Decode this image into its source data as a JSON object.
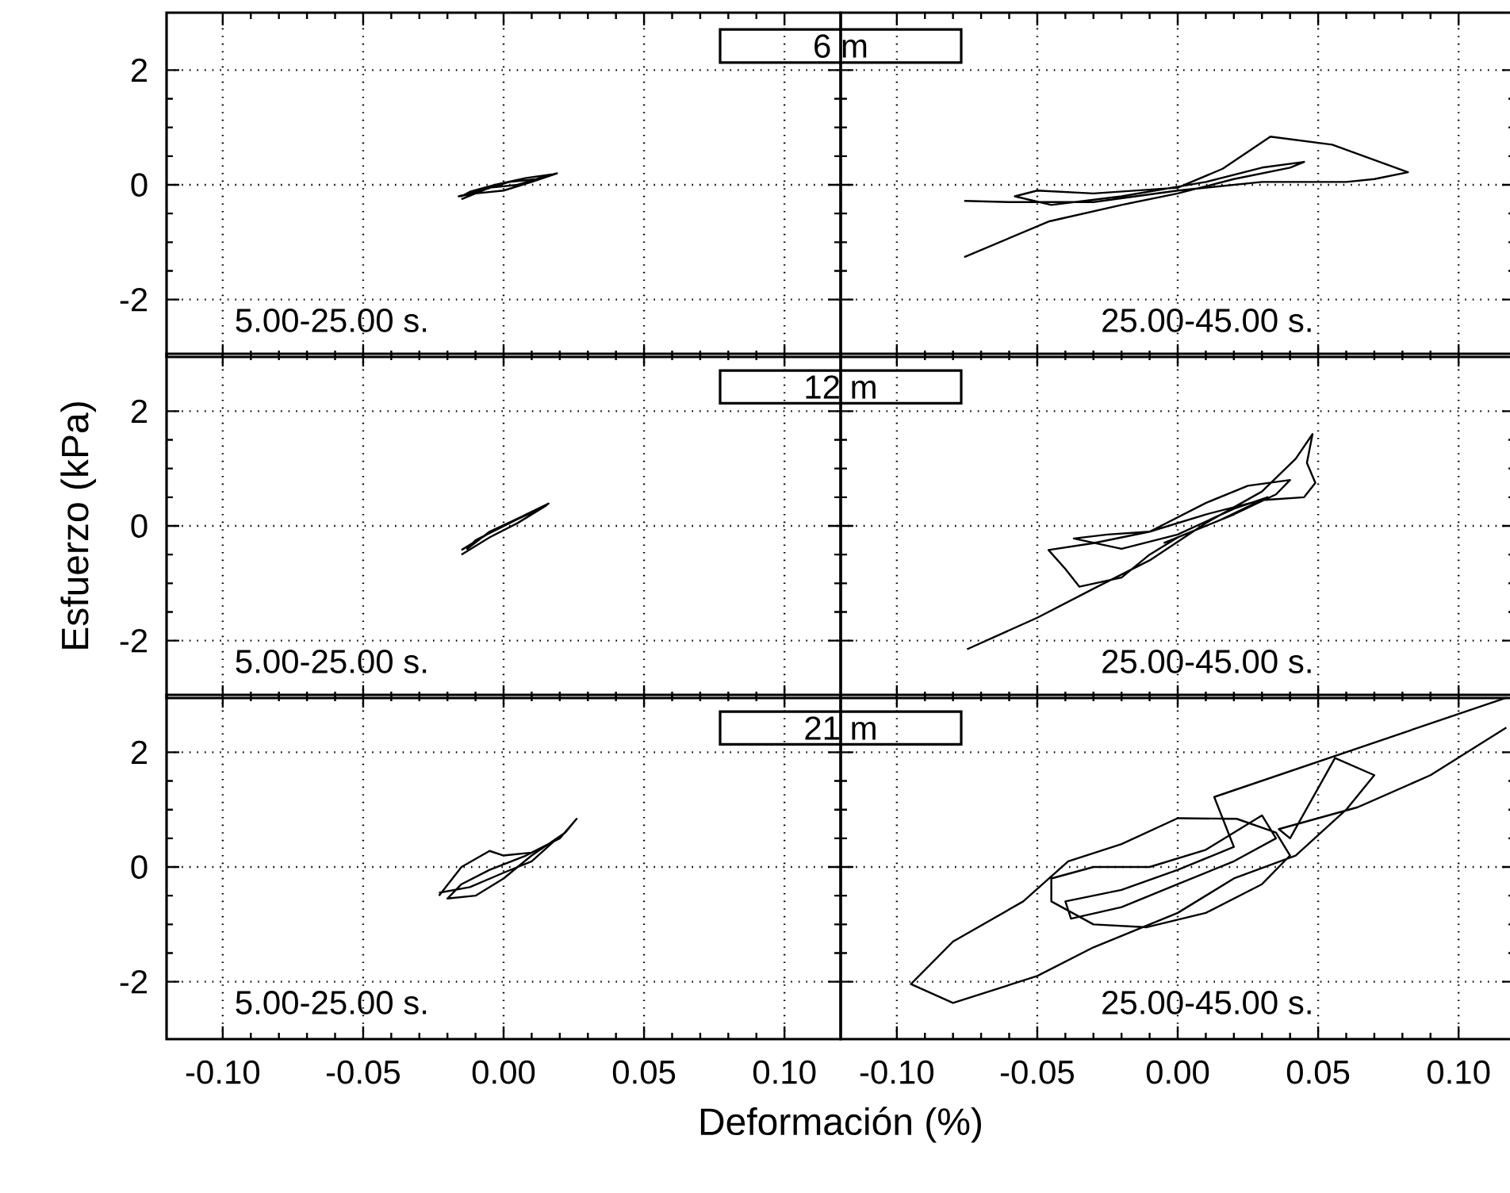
{
  "chart_data": [
    {
      "type": "line",
      "title": "6 m",
      "annotations": [
        "5.00-25.00 s."
      ],
      "xlim": [
        -0.12,
        0.12
      ],
      "ylim": [
        -3,
        3
      ],
      "xticks": [
        {
          "value": -0.1,
          "label": null
        },
        {
          "value": -0.05,
          "label": null
        },
        {
          "value": 0,
          "label": null
        },
        {
          "value": 0.05,
          "label": null
        },
        {
          "value": 0.1,
          "label": null
        }
      ],
      "yticks": [
        -2,
        0,
        2
      ],
      "grid": true,
      "tick_labels": "y",
      "series": [
        {
          "color": "#000000",
          "x": [
            -0.015,
            -0.005,
            0.005,
            0.015,
            0.019,
            0.01,
            0.0,
            -0.01,
            -0.016,
            -0.008,
            0.002,
            0.012,
            0.017,
            0.008,
            -0.003,
            -0.012,
            -0.015
          ],
          "values": [
            -0.25,
            -0.05,
            0.0,
            0.15,
            0.2,
            0.05,
            -0.1,
            -0.15,
            -0.2,
            -0.1,
            0.05,
            0.1,
            0.18,
            0.12,
            0.0,
            -0.12,
            -0.2
          ]
        }
      ]
    },
    {
      "type": "line",
      "annotations": [
        "25.00-45.00 s."
      ],
      "xlim": [
        -0.12,
        0.12
      ],
      "ylim": [
        -3,
        3
      ],
      "xticks": [
        {
          "value": -0.1,
          "label": null
        },
        {
          "value": -0.05,
          "label": null
        },
        {
          "value": 0,
          "label": null
        },
        {
          "value": 0.05,
          "label": null
        },
        {
          "value": 0.1,
          "label": null
        }
      ],
      "yticks": [
        {
          "value": -2,
          "label": null
        },
        {
          "value": 0,
          "label": null
        },
        {
          "value": 2,
          "label": null
        }
      ],
      "grid": true,
      "tick_labels": false,
      "series": [
        {
          "color": "#000000",
          "x": [
            -0.076,
            -0.046,
            -0.02,
            0.0,
            0.02,
            0.04,
            0.045,
            0.03,
            0.01,
            -0.02,
            -0.045,
            -0.058,
            -0.05,
            -0.03,
            0.0,
            0.016,
            0.033,
            0.055,
            0.082,
            0.07,
            0.06,
            0.03,
            0.0,
            -0.03,
            -0.06,
            -0.076
          ],
          "values": [
            -1.26,
            -0.64,
            -0.35,
            -0.15,
            0.1,
            0.3,
            0.4,
            0.3,
            0.05,
            -0.2,
            -0.35,
            -0.2,
            -0.1,
            -0.15,
            -0.05,
            0.28,
            0.84,
            0.7,
            0.22,
            0.1,
            0.05,
            0.05,
            -0.1,
            -0.3,
            -0.3,
            -0.28
          ]
        }
      ]
    },
    {
      "type": "line",
      "title": "12 m",
      "ylabel": "Esfuerzo (kPa)",
      "annotations": [
        "5.00-25.00 s."
      ],
      "xlim": [
        -0.12,
        0.12
      ],
      "ylim": [
        -3,
        3
      ],
      "xticks": [
        {
          "value": -0.1,
          "label": null
        },
        {
          "value": -0.05,
          "label": null
        },
        {
          "value": 0,
          "label": null
        },
        {
          "value": 0.05,
          "label": null
        },
        {
          "value": 0.1,
          "label": null
        }
      ],
      "yticks": [
        -2,
        0,
        2
      ],
      "grid": true,
      "tick_labels": "y",
      "series": [
        {
          "color": "#000000",
          "x": [
            -0.015,
            -0.005,
            0.005,
            0.015,
            0.016,
            0.008,
            0.0,
            -0.01,
            -0.013,
            -0.005,
            0.006,
            0.013,
            0.005,
            -0.006,
            -0.015
          ],
          "values": [
            -0.5,
            -0.2,
            0.05,
            0.35,
            0.39,
            0.2,
            0.0,
            -0.25,
            -0.4,
            -0.1,
            0.15,
            0.3,
            0.12,
            -0.15,
            -0.42
          ]
        }
      ]
    },
    {
      "type": "line",
      "annotations": [
        "25.00-45.00 s."
      ],
      "xlim": [
        -0.12,
        0.12
      ],
      "ylim": [
        -3,
        3
      ],
      "xticks": [
        {
          "value": -0.1,
          "label": null
        },
        {
          "value": -0.05,
          "label": null
        },
        {
          "value": 0,
          "label": null
        },
        {
          "value": 0.05,
          "label": null
        },
        {
          "value": 0.1,
          "label": null
        }
      ],
      "yticks": [
        {
          "value": -2,
          "label": null
        },
        {
          "value": 0,
          "label": null
        },
        {
          "value": 2,
          "label": null
        }
      ],
      "grid": true,
      "tick_labels": false,
      "series": [
        {
          "color": "#000000",
          "x": [
            -0.075,
            -0.05,
            -0.029,
            -0.01,
            0.01,
            0.03,
            0.042,
            0.048,
            0.046,
            0.049,
            0.045,
            0.03,
            0.01,
            -0.01,
            -0.03,
            -0.046,
            -0.04,
            -0.035,
            -0.02,
            -0.01,
            0.0,
            0.02,
            0.035,
            0.04,
            0.025,
            0.01,
            -0.01,
            -0.025,
            -0.037,
            -0.02,
            0.0,
            0.02,
            0.032,
            0.015,
            -0.005
          ],
          "values": [
            -2.15,
            -1.6,
            -1.07,
            -0.6,
            0.05,
            0.6,
            1.17,
            1.6,
            1.1,
            0.75,
            0.5,
            0.45,
            0.2,
            -0.1,
            -0.3,
            -0.42,
            -0.75,
            -1.06,
            -0.9,
            -0.5,
            -0.2,
            0.2,
            0.55,
            0.8,
            0.7,
            0.4,
            -0.1,
            -0.15,
            -0.22,
            -0.4,
            -0.15,
            0.3,
            0.5,
            0.1,
            -0.3
          ]
        }
      ]
    },
    {
      "type": "line",
      "title": "21 m",
      "xlabel": "Deformación (%)",
      "annotations": [
        "5.00-25.00 s."
      ],
      "xlim": [
        -0.12,
        0.12
      ],
      "ylim": [
        -3,
        3
      ],
      "xticks": [
        {
          "value": -0.1,
          "label": "-0.10"
        },
        {
          "value": -0.05,
          "label": "-0.05"
        },
        {
          "value": 0,
          "label": "0.00"
        },
        {
          "value": 0.05,
          "label": "0.05"
        },
        {
          "value": 0.1,
          "label": "0.10"
        }
      ],
      "yticks": [
        -2,
        0,
        2
      ],
      "grid": true,
      "series": [
        {
          "color": "#000000",
          "x": [
            -0.023,
            -0.015,
            -0.005,
            0.0,
            0.01,
            0.02,
            0.026,
            0.022,
            0.01,
            0.0,
            -0.01,
            -0.02,
            -0.015,
            -0.005,
            0.008,
            0.018,
            0.01,
            0.0,
            -0.012,
            -0.023
          ],
          "values": [
            -0.5,
            0.0,
            0.28,
            0.2,
            0.25,
            0.5,
            0.84,
            0.6,
            0.2,
            -0.2,
            -0.5,
            -0.55,
            -0.3,
            -0.05,
            0.2,
            0.45,
            0.1,
            -0.1,
            -0.35,
            -0.45
          ]
        }
      ]
    },
    {
      "type": "line",
      "annotations": [
        "25.00-45.00 s."
      ],
      "xlim": [
        -0.12,
        0.12
      ],
      "ylim": [
        -3,
        3
      ],
      "xticks": [
        {
          "value": -0.1,
          "label": "-0.10"
        },
        {
          "value": -0.05,
          "label": "-0.05"
        },
        {
          "value": 0,
          "label": "0.00"
        },
        {
          "value": 0.05,
          "label": "0.05"
        },
        {
          "value": 0.1,
          "label": "0.10"
        }
      ],
      "yticks": [
        {
          "value": -2,
          "label": null
        },
        {
          "value": 0,
          "label": null
        },
        {
          "value": 2,
          "label": null
        }
      ],
      "grid": true,
      "tick_labels": "x",
      "series": [
        {
          "color": "#000000",
          "x": [
            0.117,
            0.09,
            0.064,
            0.036,
            0.04,
            0.056,
            0.07,
            0.06,
            0.042,
            0.02,
            0.0,
            -0.03,
            -0.05,
            -0.08,
            -0.095,
            -0.08,
            -0.055,
            -0.039,
            -0.02,
            0.0,
            0.021,
            0.035,
            0.04,
            0.03,
            0.01,
            -0.011,
            -0.03,
            -0.045,
            -0.045,
            -0.03,
            -0.01,
            0.01,
            0.03,
            0.035,
            0.02,
            0.0,
            -0.02,
            -0.038,
            -0.04,
            -0.02,
            0.0,
            0.02,
            0.013,
            0.117
          ],
          "values": [
            2.43,
            1.6,
            1.04,
            0.66,
            0.5,
            1.9,
            1.6,
            1.0,
            0.2,
            -0.2,
            -0.8,
            -1.4,
            -1.9,
            -2.37,
            -2.04,
            -1.3,
            -0.6,
            0.1,
            0.4,
            0.85,
            0.84,
            0.6,
            0.2,
            -0.3,
            -0.8,
            -1.05,
            -1.0,
            -0.6,
            -0.2,
            0.0,
            0.0,
            0.3,
            0.9,
            0.5,
            0.1,
            -0.3,
            -0.7,
            -0.9,
            -0.6,
            -0.4,
            -0.05,
            0.35,
            1.22,
            2.95
          ]
        }
      ]
    }
  ]
}
